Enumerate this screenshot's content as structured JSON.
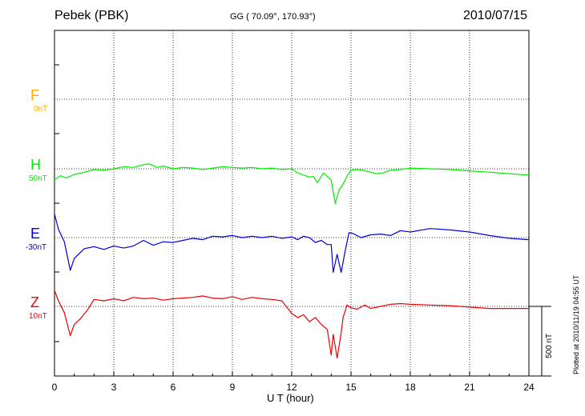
{
  "header": {
    "station": "Pebek (PBK)",
    "coords": "GG ( 70.09°, 170.93°)",
    "date": "2010/07/15"
  },
  "footer": {
    "plotted": "Plotted at 2010/11/19 04:55 UT"
  },
  "chart_data": {
    "type": "line",
    "xlabel": "U T (hour)",
    "xlim": [
      0,
      24
    ],
    "xticks": [
      0,
      3,
      6,
      9,
      12,
      15,
      18,
      21,
      24
    ],
    "grid": true,
    "scale_bar": {
      "value": 500,
      "label": "500 nT"
    },
    "series": [
      {
        "name": "F",
        "baseline_label": "0nT",
        "color": "#ffaa00",
        "x": [],
        "y": []
      },
      {
        "name": "H",
        "baseline_label": "50nT",
        "color": "#00ee00",
        "x": [
          0,
          0.3,
          0.6,
          1.0,
          1.5,
          2.0,
          2.5,
          3.0,
          3.5,
          4.0,
          4.5,
          4.8,
          5.2,
          5.5,
          6.0,
          6.5,
          7.0,
          7.5,
          8.0,
          8.5,
          9.0,
          9.5,
          10.0,
          10.5,
          11.0,
          11.5,
          12.0,
          12.3,
          12.6,
          12.9,
          13.1,
          13.3,
          13.6,
          13.8,
          14.0,
          14.2,
          14.4,
          14.6,
          14.8,
          15.0,
          15.3,
          15.6,
          16.0,
          16.3,
          16.6,
          17.0,
          17.5,
          18.0,
          19.0,
          20.0,
          21.0,
          22.0,
          23.0,
          24.0
        ],
        "y": [
          -80,
          -50,
          -65,
          -40,
          -25,
          -5,
          -10,
          0,
          15,
          10,
          30,
          35,
          10,
          20,
          0,
          10,
          5,
          -5,
          5,
          15,
          10,
          5,
          10,
          0,
          5,
          -5,
          0,
          -30,
          -45,
          -60,
          -55,
          -100,
          -30,
          -55,
          -80,
          -250,
          -150,
          -110,
          -50,
          -10,
          -5,
          -10,
          -25,
          -35,
          -30,
          -10,
          -5,
          5,
          0,
          -5,
          -15,
          -25,
          -35,
          -45
        ]
      },
      {
        "name": "E",
        "baseline_label": "-30nT",
        "color": "#0000dd",
        "x": [
          0,
          0.2,
          0.5,
          0.8,
          1.0,
          1.5,
          2.0,
          2.5,
          3.0,
          3.5,
          4.0,
          4.5,
          5.0,
          5.5,
          6.0,
          6.5,
          7.0,
          7.5,
          8.0,
          8.5,
          9.0,
          9.5,
          10.0,
          10.5,
          11.0,
          11.5,
          12.0,
          12.3,
          12.6,
          12.9,
          13.2,
          13.5,
          13.8,
          14.0,
          14.1,
          14.3,
          14.5,
          14.7,
          14.9,
          15.1,
          15.5,
          16.0,
          16.5,
          17.0,
          17.5,
          18.0,
          19.0,
          20.0,
          21.0,
          22.0,
          23.0,
          24.0
        ],
        "y": [
          170,
          60,
          -30,
          -235,
          -150,
          -80,
          -65,
          -85,
          -60,
          -75,
          -60,
          -20,
          -55,
          -30,
          -35,
          -20,
          -5,
          -15,
          10,
          5,
          15,
          0,
          10,
          0,
          10,
          -5,
          5,
          -15,
          10,
          0,
          -35,
          -20,
          -50,
          -50,
          -250,
          -120,
          -250,
          -100,
          35,
          30,
          0,
          20,
          25,
          15,
          50,
          40,
          65,
          55,
          40,
          15,
          -5,
          -15
        ]
      },
      {
        "name": "Z",
        "baseline_label": "10nT",
        "color": "#ee0000",
        "x": [
          0,
          0.2,
          0.5,
          0.8,
          1.0,
          1.3,
          1.7,
          2.0,
          2.5,
          3.0,
          3.5,
          4.0,
          4.5,
          5.0,
          5.5,
          6.0,
          6.5,
          7.0,
          7.5,
          8.0,
          8.5,
          9.0,
          9.5,
          10.0,
          10.5,
          11.0,
          11.5,
          12.0,
          12.3,
          12.6,
          12.9,
          13.2,
          13.5,
          13.8,
          14.0,
          14.1,
          14.3,
          14.5,
          14.6,
          14.8,
          15.0,
          15.3,
          15.7,
          16.0,
          16.5,
          17.0,
          17.5,
          18.0,
          19.0,
          20.0,
          21.0,
          22.0,
          23.0,
          24.0
        ],
        "y": [
          115,
          40,
          -45,
          -210,
          -130,
          -90,
          -20,
          50,
          40,
          55,
          40,
          65,
          55,
          60,
          45,
          55,
          60,
          65,
          75,
          60,
          55,
          70,
          50,
          65,
          55,
          50,
          40,
          -50,
          -80,
          -60,
          -110,
          -80,
          -130,
          -165,
          -350,
          -200,
          -370,
          -190,
          -80,
          10,
          -10,
          -20,
          10,
          -15,
          0,
          15,
          20,
          15,
          10,
          5,
          -5,
          -15,
          -15,
          -15
        ]
      }
    ]
  }
}
